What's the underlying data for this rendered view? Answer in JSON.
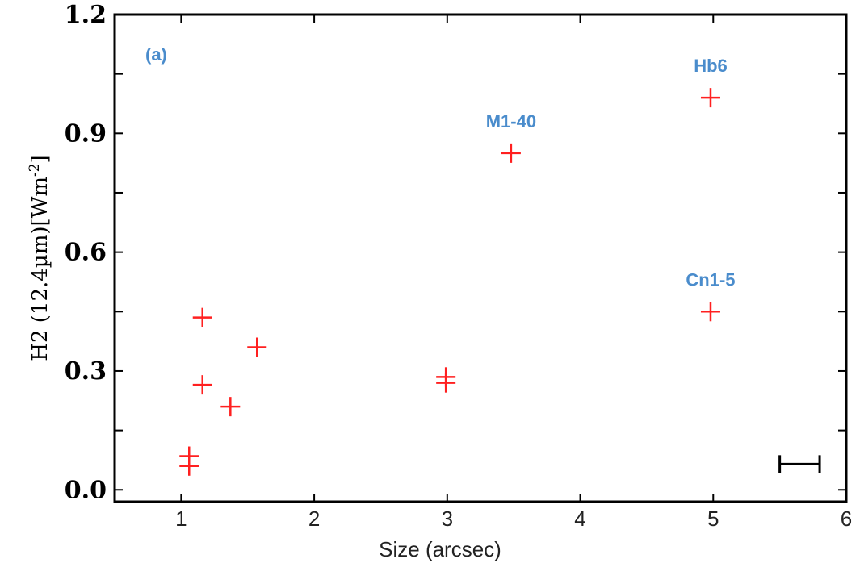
{
  "chart_data": {
    "type": "scatter",
    "panel_label": "(a)",
    "xlabel": "Size (arcsec)",
    "ylabel_main": "H2 (12.4µm)[Wm",
    "ylabel_sup": "-2",
    "ylabel_end": "]",
    "xlim": [
      0.5,
      6
    ],
    "ylim": [
      -0.03,
      1.2
    ],
    "xticks": [
      "1",
      "2",
      "3",
      "4",
      "5",
      "6"
    ],
    "yticks": [
      "0.0",
      "0.3",
      "0.6",
      "0.9",
      "1.2"
    ],
    "series": [
      {
        "name": "objects",
        "marker": "plus",
        "color": "#ff2020",
        "points": [
          {
            "x": 1.06,
            "y": 0.06
          },
          {
            "x": 1.06,
            "y": 0.085
          },
          {
            "x": 1.16,
            "y": 0.435
          },
          {
            "x": 1.16,
            "y": 0.265
          },
          {
            "x": 1.37,
            "y": 0.21
          },
          {
            "x": 1.57,
            "y": 0.36
          },
          {
            "x": 2.99,
            "y": 0.27
          },
          {
            "x": 2.99,
            "y": 0.285
          },
          {
            "x": 3.48,
            "y": 0.85
          },
          {
            "x": 4.98,
            "y": 0.99
          },
          {
            "x": 4.98,
            "y": 0.45
          }
        ]
      }
    ],
    "annotations": [
      {
        "text": "M1-40",
        "x": 3.48,
        "y": 0.85
      },
      {
        "text": "Hb6",
        "x": 4.98,
        "y": 0.99
      },
      {
        "text": "Cn1-5",
        "x": 4.98,
        "y": 0.45
      }
    ],
    "error_bar": {
      "x_from": 5.5,
      "x_to": 5.8,
      "y": 0.065
    },
    "annotation_color": "#4a8ccc"
  }
}
